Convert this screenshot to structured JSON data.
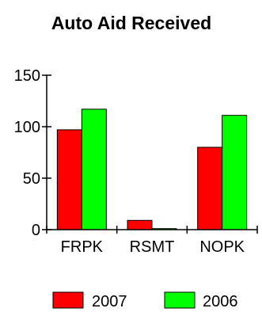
{
  "chart_data": {
    "type": "bar",
    "title": "Auto Aid Received",
    "categories": [
      "FRPK",
      "RSMT",
      "NOPK"
    ],
    "series": [
      {
        "name": "2007",
        "color": "#ff0000",
        "values": [
          97,
          9,
          80
        ]
      },
      {
        "name": "2006",
        "color": "#00ff00",
        "values": [
          117,
          1,
          111
        ]
      }
    ],
    "ylim": [
      0,
      150
    ],
    "yticks": [
      0,
      50,
      100,
      150
    ],
    "xlabel": "",
    "ylabel": "",
    "grid": false,
    "legend": "bottom"
  }
}
